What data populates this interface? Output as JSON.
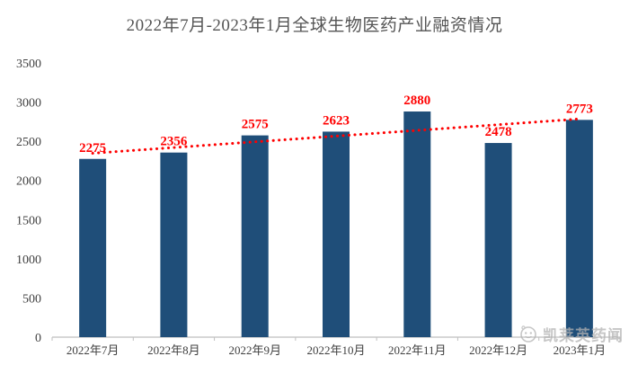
{
  "chart_data": {
    "type": "bar",
    "title": "2022年7月-2023年1月全球生物医药产业融资情况",
    "categories": [
      "2022年7月",
      "2022年8月",
      "2022年9月",
      "2022年10月",
      "2022年11月",
      "2022年12月",
      "2023年1月"
    ],
    "values": [
      2275,
      2356,
      2575,
      2623,
      2880,
      2478,
      2773
    ],
    "y_ticks": [
      0,
      500,
      1000,
      1500,
      2000,
      2500,
      3000,
      3500
    ],
    "ylim": [
      0,
      3500
    ],
    "grid": false,
    "legend": false,
    "bar_color": "#1f4e79",
    "value_label_color": "#ff0000",
    "axis_color": "#bfbfbf",
    "tick_label_color": "#404040",
    "title_color": "#545454",
    "trendline": {
      "type": "linear",
      "style": "dotted",
      "color": "#ff0000",
      "start_value": 2347,
      "end_value": 2785
    }
  },
  "watermark": {
    "text": "凯莱英药闻",
    "icon": "brand-logo-icon"
  }
}
